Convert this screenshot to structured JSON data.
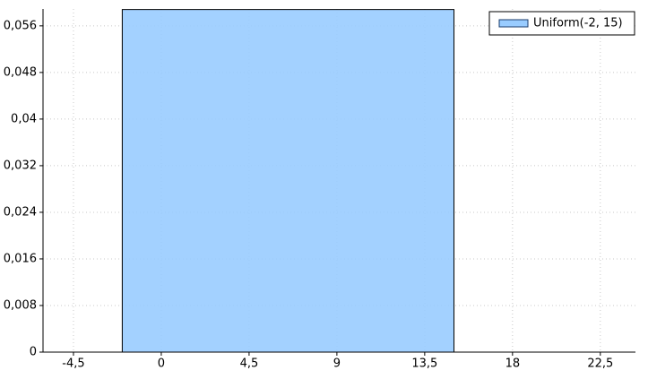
{
  "chart_data": {
    "type": "area",
    "x": [
      -2,
      -2,
      15,
      15
    ],
    "series": [
      {
        "name": "Uniform(-2, 15)",
        "color": "#99ccff",
        "values": [
          0,
          0.0588,
          0.0588,
          0
        ]
      }
    ],
    "xlim": [
      -6.06,
      24.3
    ],
    "ylim": [
      0,
      0.0589
    ],
    "xticks": [
      {
        "value": -4.5,
        "label": "-4,5"
      },
      0,
      {
        "value": 4.5,
        "label": "4,5"
      },
      9,
      {
        "value": 13.5,
        "label": "13,5"
      },
      18,
      {
        "value": 22.5,
        "label": "22,5"
      }
    ],
    "yticks": [
      0,
      {
        "value": 0.008,
        "label": "0,008"
      },
      {
        "value": 0.016,
        "label": "0,016"
      },
      {
        "value": 0.024,
        "label": "0,024"
      },
      {
        "value": 0.032,
        "label": "0,032"
      },
      {
        "value": 0.04,
        "label": "0,04"
      },
      {
        "value": 0.048,
        "label": "0,048"
      },
      {
        "value": 0.056,
        "label": "0,056"
      }
    ],
    "grid": true,
    "legend": "top-right"
  }
}
